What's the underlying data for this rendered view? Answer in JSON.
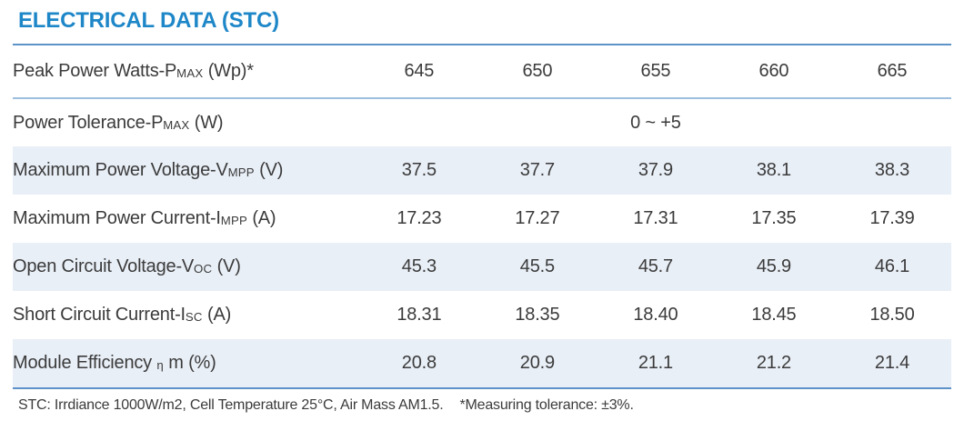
{
  "page": {
    "title": "ELECTRICAL DATA (STC)"
  },
  "colors": {
    "title_blue": "#1e87c8",
    "rule_blue": "#5e93c9",
    "separator_blue": "#9dbede",
    "stripe_bg": "#e9eff7",
    "text_dark": "#3b3b3b"
  },
  "table": {
    "rows": [
      {
        "label_main": "Peak Power Watts-P",
        "label_sub": "MAX",
        "label_suffix": " (Wp)*",
        "values": [
          "645",
          "650",
          "655",
          "660",
          "665"
        ]
      },
      {
        "label_main": "Power Tolerance-P",
        "label_sub": "MAX",
        "label_suffix": " (W)",
        "values": [
          "0 ~ +5"
        ]
      },
      {
        "label_main": "Maximum Power Voltage-V",
        "label_sub": "MPP",
        "label_suffix": " (V)",
        "values": [
          "37.5",
          "37.7",
          "37.9",
          "38.1",
          "38.3"
        ]
      },
      {
        "label_main": "Maximum Power Current-I",
        "label_sub": "MPP",
        "label_suffix": " (A)",
        "values": [
          "17.23",
          "17.27",
          "17.31",
          "17.35",
          "17.39"
        ]
      },
      {
        "label_main": "Open Circuit Voltage-V",
        "label_sub": "OC",
        "label_suffix": " (V)",
        "values": [
          "45.3",
          "45.5",
          "45.7",
          "45.9",
          "46.1"
        ]
      },
      {
        "label_main": "Short Circuit Current-I",
        "label_sub": "SC",
        "label_suffix": " (A)",
        "values": [
          "18.31",
          "18.35",
          "18.40",
          "18.45",
          "18.50"
        ]
      },
      {
        "label_main": "Module Efficiency ",
        "label_sub": "η",
        "label_suffix": " m (%)",
        "values": [
          "20.8",
          "20.9",
          "21.1",
          "21.2",
          "21.4"
        ]
      }
    ]
  },
  "footnote": {
    "conditions": "STC: Irrdiance 1000W/m2, Cell Temperature 25°C, Air Mass AM1.5.",
    "tolerance": "*Measuring tolerance: ±3%."
  }
}
